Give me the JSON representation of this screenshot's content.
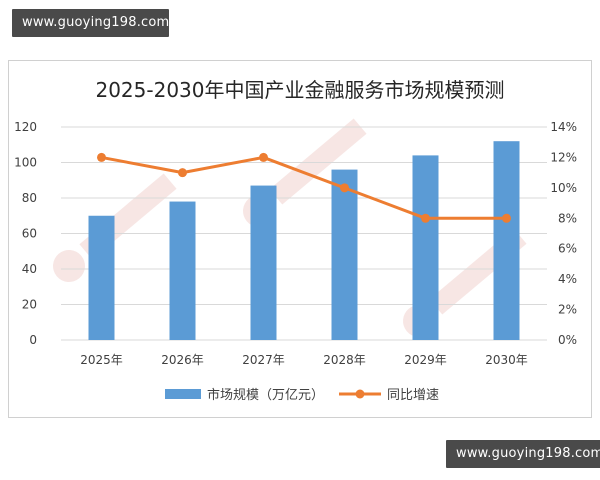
{
  "watermark_top": "www.guoying198.com",
  "watermark_bottom": "www.guoying198.com",
  "chart_data": {
    "type": "bar+line",
    "title": "2025-2030年中国产业金融服务市场规模预测",
    "categories": [
      "2025年",
      "2026年",
      "2027年",
      "2028年",
      "2029年",
      "2030年"
    ],
    "series": [
      {
        "name": "市场规模（万亿元）",
        "type": "bar",
        "axis": "left",
        "values": [
          70,
          78,
          87,
          96,
          104,
          112
        ]
      },
      {
        "name": "同比增速",
        "type": "line",
        "axis": "right",
        "values": [
          0.12,
          0.11,
          0.12,
          0.1,
          0.08,
          0.08
        ]
      }
    ],
    "y_left": {
      "ylim": [
        0,
        120
      ],
      "ticks": [
        0,
        20,
        40,
        60,
        80,
        100,
        120
      ],
      "labels": [
        "0",
        "20",
        "40",
        "60",
        "80",
        "100",
        "120"
      ]
    },
    "y_right": {
      "ylim": [
        0,
        0.14
      ],
      "ticks": [
        0,
        0.02,
        0.04,
        0.06,
        0.08,
        0.1,
        0.12,
        0.14
      ],
      "labels": [
        "0%",
        "2%",
        "4%",
        "6%",
        "8%",
        "10%",
        "12%",
        "14%"
      ]
    },
    "grid": true,
    "legend_position": "bottom",
    "colors": {
      "bar": "#5b9bd5",
      "line": "#ed7d31",
      "grid": "#d9d9d9",
      "text": "#404040"
    }
  }
}
